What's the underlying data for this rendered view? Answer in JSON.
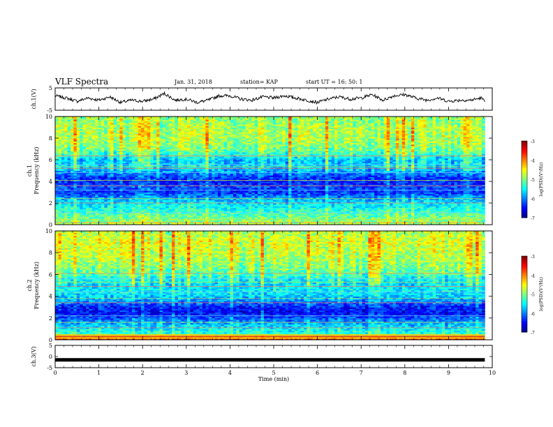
{
  "header": {
    "title": "VLF Spectra",
    "date": "Jan. 31, 2018",
    "station": "station= KAP",
    "start": "start  UT =   16: 50: 1"
  },
  "chart_data": [
    {
      "type": "line",
      "title": "",
      "xlabel": "",
      "ylabel": "ch.1(V)",
      "xlim": [
        0,
        10
      ],
      "ylim": [
        -5,
        5
      ],
      "yticks": [
        "5",
        "-5"
      ],
      "series": [
        {
          "x": [
            0,
            0.25,
            0.5,
            0.75,
            1.0,
            1.25,
            1.5,
            1.75,
            2.0,
            2.25,
            2.5,
            2.75,
            3.0,
            3.25,
            3.5,
            3.75,
            4.0,
            4.25,
            4.5,
            4.75,
            5.0,
            5.25,
            5.5,
            5.75,
            6.0,
            6.25,
            6.5,
            6.75,
            7.0,
            7.25,
            7.5,
            7.75,
            8.0,
            8.25,
            8.5,
            8.75,
            9.0,
            9.25,
            9.5,
            9.75,
            9.83
          ],
          "values": [
            1.5,
            0.5,
            -1.0,
            0.5,
            -0.5,
            1.0,
            -1.5,
            -0.5,
            -1.0,
            0.0,
            2.5,
            -0.5,
            0.0,
            -1.5,
            -0.5,
            1.5,
            1.5,
            0.0,
            -0.5,
            1.0,
            0.5,
            1.5,
            0.5,
            -0.5,
            -1.5,
            0.0,
            1.0,
            0.0,
            0.5,
            2.0,
            -0.5,
            1.5,
            2.0,
            0.5,
            -0.5,
            0.5,
            -1.0,
            -0.5,
            -0.5,
            0.5,
            -1.0
          ]
        }
      ]
    },
    {
      "type": "heatmap",
      "title": "",
      "xlabel": "",
      "ylabel": "ch.1\nFrequency (kHz)",
      "xlim": [
        0,
        10
      ],
      "ylim": [
        0,
        10
      ],
      "yticks": [
        "0",
        "2",
        "4",
        "6",
        "8",
        "10"
      ],
      "colorbar": {
        "label": "log(PSD)(V²/Hz)",
        "ticks": [
          "-3",
          "-4",
          "-5",
          "-6",
          "-7"
        ],
        "range": [
          -7,
          -3
        ]
      },
      "freq_profile": {
        "freq_khz": [
          0,
          0.5,
          1.0,
          1.5,
          2.0,
          2.5,
          3.0,
          3.5,
          4.0,
          4.5,
          5.0,
          5.5,
          6.0,
          6.5,
          7.0,
          7.5,
          8.0,
          8.5,
          9.0,
          9.5,
          10.0
        ],
        "mean_log_psd": [
          -4.8,
          -5.0,
          -5.2,
          -5.4,
          -5.6,
          -5.9,
          -6.3,
          -6.2,
          -6.4,
          -6.2,
          -5.8,
          -5.6,
          -5.7,
          -5.3,
          -5.0,
          -4.9,
          -4.8,
          -4.8,
          -4.8,
          -4.9,
          -4.9
        ]
      },
      "lines_khz": [
        0.2,
        0.5,
        1.1,
        2.0,
        2.4,
        3.2,
        3.6,
        4.1,
        4.8,
        5.2,
        5.35,
        5.55,
        6.35
      ]
    },
    {
      "type": "heatmap",
      "title": "",
      "xlabel": "",
      "ylabel": "ch.2\nFrequency (kHz)",
      "xlim": [
        0,
        10
      ],
      "ylim": [
        0,
        10
      ],
      "yticks": [
        "0",
        "2",
        "4",
        "6",
        "8",
        "10"
      ],
      "colorbar": {
        "label": "log(PSD)(V²/Hz)",
        "ticks": [
          "-3",
          "-4",
          "-5",
          "-6",
          "-7"
        ],
        "range": [
          -7,
          -3
        ]
      },
      "freq_profile": {
        "freq_khz": [
          0,
          0.5,
          1.0,
          1.5,
          2.0,
          2.5,
          3.0,
          3.5,
          4.0,
          4.5,
          5.0,
          5.5,
          6.0,
          6.5,
          7.0,
          7.5,
          8.0,
          8.5,
          9.0,
          9.5,
          10.0
        ],
        "mean_log_psd": [
          -3.4,
          -5.3,
          -5.5,
          -5.8,
          -6.2,
          -6.5,
          -6.4,
          -6.0,
          -5.7,
          -5.5,
          -5.6,
          -5.5,
          -5.2,
          -5.0,
          -4.9,
          -4.8,
          -4.7,
          -4.7,
          -4.6,
          -4.7,
          -4.8
        ]
      },
      "lines_khz": [
        0.15,
        0.3,
        0.45,
        1.1,
        1.6,
        2.2,
        3.4,
        3.8,
        4.4,
        4.9,
        5.3,
        5.6,
        6.1
      ]
    },
    {
      "type": "line",
      "title": "",
      "xlabel": "Time  (min)",
      "ylabel": "ch.3(V)",
      "xlim": [
        0,
        10
      ],
      "ylim": [
        -5,
        5
      ],
      "yticks": [
        "5",
        "0",
        "-5"
      ],
      "xticks": [
        "0",
        "1",
        "2",
        "3",
        "4",
        "5",
        "6",
        "7",
        "8",
        "9",
        "10"
      ],
      "series": [
        {
          "x": [
            0,
            9.83
          ],
          "values": [
            -1.5,
            -1.5
          ]
        }
      ]
    }
  ]
}
